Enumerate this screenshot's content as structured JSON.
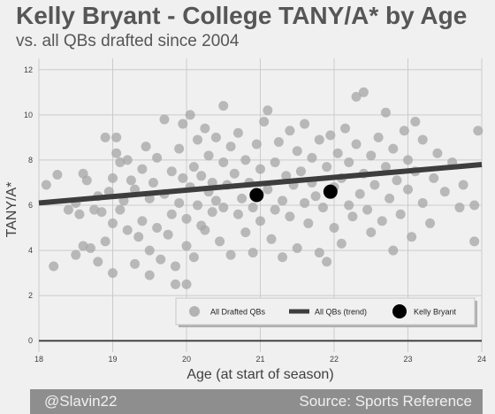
{
  "header": {
    "title": "Kelly Bryant - College TANY/A* by Age",
    "subtitle": "vs. all QBs drafted since 2004"
  },
  "footer": {
    "left": "@Slavin22",
    "right": "Source: Sports Reference"
  },
  "colors": {
    "background": "#f0f0f0",
    "scatter": "#a8a8a8",
    "trend": "#3d3d3d",
    "highlight": "#000000",
    "footer": "#8e8e8e"
  },
  "chart_data": {
    "type": "scatter",
    "xlabel": "Age (at start of season)",
    "ylabel": "TANY/A*",
    "xlim": [
      18,
      24
    ],
    "ylim": [
      -0.5,
      12.5
    ],
    "xticks": [
      18,
      19,
      20,
      21,
      22,
      23,
      24
    ],
    "yticks": [
      0,
      2,
      4,
      6,
      8,
      10,
      12
    ],
    "grid": true,
    "legend_position": "lower-right",
    "legend": [
      "All Drafted QBs",
      "All QBs (trend)",
      "Kelly Bryant"
    ],
    "trend": {
      "x": [
        18,
        24
      ],
      "y": [
        6.1,
        7.8
      ]
    },
    "highlight": {
      "name": "Kelly Bryant",
      "points": [
        [
          20.95,
          6.45
        ],
        [
          21.95,
          6.6
        ]
      ]
    },
    "series": [
      {
        "name": "All Drafted QBs",
        "points": [
          [
            18.1,
            6.9
          ],
          [
            18.2,
            3.3
          ],
          [
            18.25,
            7.35
          ],
          [
            18.4,
            5.8
          ],
          [
            18.5,
            6.1
          ],
          [
            18.5,
            3.8
          ],
          [
            18.55,
            5.6
          ],
          [
            18.6,
            7.4
          ],
          [
            18.6,
            4.2
          ],
          [
            18.65,
            7.1
          ],
          [
            18.7,
            4.1
          ],
          [
            18.75,
            5.8
          ],
          [
            18.8,
            6.4
          ],
          [
            18.8,
            3.5
          ],
          [
            18.85,
            5.7
          ],
          [
            18.9,
            4.4
          ],
          [
            18.9,
            9.0
          ],
          [
            18.95,
            6.6
          ],
          [
            19.0,
            7.2
          ],
          [
            19.0,
            5.2
          ],
          [
            19.0,
            3.0
          ],
          [
            19.05,
            8.3
          ],
          [
            19.05,
            9.0
          ],
          [
            19.1,
            7.9
          ],
          [
            19.1,
            5.8
          ],
          [
            19.15,
            6.2
          ],
          [
            19.2,
            8.0
          ],
          [
            19.2,
            4.9
          ],
          [
            19.25,
            7.1
          ],
          [
            19.3,
            3.4
          ],
          [
            19.3,
            6.7
          ],
          [
            19.35,
            4.6
          ],
          [
            19.4,
            7.6
          ],
          [
            19.4,
            5.3
          ],
          [
            19.45,
            8.6
          ],
          [
            19.5,
            6.3
          ],
          [
            19.5,
            4.0
          ],
          [
            19.5,
            2.9
          ],
          [
            19.55,
            7.0
          ],
          [
            19.6,
            5.0
          ],
          [
            19.6,
            8.1
          ],
          [
            19.65,
            3.6
          ],
          [
            19.7,
            6.5
          ],
          [
            19.7,
            9.8
          ],
          [
            19.75,
            4.7
          ],
          [
            19.8,
            7.5
          ],
          [
            19.8,
            5.6
          ],
          [
            19.85,
            2.5
          ],
          [
            19.85,
            3.3
          ],
          [
            19.9,
            8.5
          ],
          [
            19.9,
            6.1
          ],
          [
            19.95,
            9.6
          ],
          [
            19.95,
            7.2
          ],
          [
            20.0,
            5.4
          ],
          [
            20.0,
            4.2
          ],
          [
            20.0,
            2.5
          ],
          [
            20.05,
            10.0
          ],
          [
            20.05,
            6.8
          ],
          [
            20.1,
            7.7
          ],
          [
            20.1,
            3.7
          ],
          [
            20.15,
            8.9
          ],
          [
            20.15,
            6.0
          ],
          [
            20.2,
            7.3
          ],
          [
            20.2,
            5.1
          ],
          [
            20.25,
            9.4
          ],
          [
            20.25,
            4.9
          ],
          [
            20.3,
            6.6
          ],
          [
            20.3,
            8.2
          ],
          [
            20.35,
            7.0
          ],
          [
            20.35,
            5.7
          ],
          [
            20.4,
            9.0
          ],
          [
            20.4,
            6.2
          ],
          [
            20.45,
            4.4
          ],
          [
            20.5,
            7.9
          ],
          [
            20.5,
            10.4
          ],
          [
            20.5,
            5.9
          ],
          [
            20.55,
            6.9
          ],
          [
            20.6,
            8.6
          ],
          [
            20.6,
            3.8
          ],
          [
            20.65,
            7.4
          ],
          [
            20.7,
            5.6
          ],
          [
            20.7,
            9.2
          ],
          [
            20.75,
            6.3
          ],
          [
            20.8,
            8.0
          ],
          [
            20.8,
            4.8
          ],
          [
            20.85,
            7.0
          ],
          [
            20.9,
            5.9
          ],
          [
            20.9,
            3.9
          ],
          [
            20.95,
            8.7
          ],
          [
            21.0,
            7.6
          ],
          [
            21.0,
            5.3
          ],
          [
            21.05,
            9.7
          ],
          [
            21.1,
            6.7
          ],
          [
            21.1,
            10.2
          ],
          [
            21.15,
            4.5
          ],
          [
            21.2,
            7.9
          ],
          [
            21.2,
            5.8
          ],
          [
            21.25,
            8.8
          ],
          [
            21.3,
            6.2
          ],
          [
            21.3,
            3.7
          ],
          [
            21.35,
            7.3
          ],
          [
            21.4,
            9.3
          ],
          [
            21.4,
            5.5
          ],
          [
            21.45,
            6.9
          ],
          [
            21.5,
            8.4
          ],
          [
            21.5,
            4.1
          ],
          [
            21.55,
            7.5
          ],
          [
            21.6,
            6.1
          ],
          [
            21.6,
            9.6
          ],
          [
            21.65,
            5.2
          ],
          [
            21.7,
            8.1
          ],
          [
            21.7,
            7.0
          ],
          [
            21.75,
            6.4
          ],
          [
            21.8,
            8.9
          ],
          [
            21.8,
            3.9
          ],
          [
            21.85,
            5.9
          ],
          [
            21.9,
            7.7
          ],
          [
            21.9,
            3.5
          ],
          [
            21.95,
            9.1
          ],
          [
            22.0,
            6.8
          ],
          [
            22.0,
            5.0
          ],
          [
            22.05,
            8.3
          ],
          [
            22.1,
            7.2
          ],
          [
            22.1,
            4.3
          ],
          [
            22.15,
            9.4
          ],
          [
            22.2,
            6.0
          ],
          [
            22.2,
            7.9
          ],
          [
            22.25,
            5.5
          ],
          [
            22.3,
            8.7
          ],
          [
            22.3,
            10.8
          ],
          [
            22.35,
            6.5
          ],
          [
            22.4,
            7.4
          ],
          [
            22.4,
            11.0
          ],
          [
            22.45,
            5.8
          ],
          [
            22.5,
            8.2
          ],
          [
            22.5,
            4.8
          ],
          [
            22.55,
            6.9
          ],
          [
            22.6,
            9.0
          ],
          [
            22.65,
            5.3
          ],
          [
            22.7,
            7.7
          ],
          [
            22.7,
            10.1
          ],
          [
            22.75,
            6.3
          ],
          [
            22.8,
            8.5
          ],
          [
            22.8,
            4.0
          ],
          [
            22.85,
            7.1
          ],
          [
            22.9,
            5.6
          ],
          [
            22.95,
            9.3
          ],
          [
            23.0,
            6.7
          ],
          [
            23.0,
            8.0
          ],
          [
            23.05,
            4.6
          ],
          [
            23.1,
            7.5
          ],
          [
            23.1,
            9.7
          ],
          [
            23.2,
            6.1
          ],
          [
            23.2,
            8.9
          ],
          [
            23.3,
            5.2
          ],
          [
            23.35,
            7.2
          ],
          [
            23.4,
            8.3
          ],
          [
            23.5,
            6.6
          ],
          [
            23.6,
            7.9
          ],
          [
            23.7,
            5.9
          ],
          [
            23.75,
            6.9
          ],
          [
            23.9,
            6.0
          ],
          [
            23.9,
            4.4
          ],
          [
            23.95,
            9.3
          ]
        ]
      }
    ]
  }
}
